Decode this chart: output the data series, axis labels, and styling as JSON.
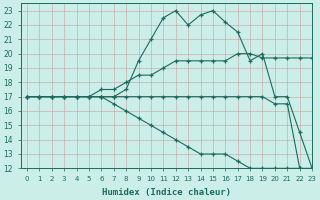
{
  "xlabel": "Humidex (Indice chaleur)",
  "xlim": [
    -0.5,
    23
  ],
  "ylim": [
    12,
    23.5
  ],
  "xticks": [
    0,
    1,
    2,
    3,
    4,
    5,
    6,
    7,
    8,
    9,
    10,
    11,
    12,
    13,
    14,
    15,
    16,
    17,
    18,
    19,
    20,
    21,
    22,
    23
  ],
  "yticks": [
    12,
    13,
    14,
    15,
    16,
    17,
    18,
    19,
    20,
    21,
    22,
    23
  ],
  "bg_color": "#cceee8",
  "line_color": "#1a6b60",
  "grid_color": "#aad4cc",
  "line1_x": [
    0,
    1,
    2,
    3,
    4,
    5,
    6,
    7,
    8,
    9,
    10,
    11,
    12,
    13,
    14,
    15,
    16,
    17,
    18,
    19,
    20,
    21,
    22,
    23
  ],
  "line1_y": [
    17,
    17,
    17,
    17,
    17,
    17,
    17,
    17,
    17.5,
    19.5,
    21,
    22.5,
    23,
    22,
    22.7,
    23,
    22.2,
    21.5,
    19.5,
    20,
    17,
    17,
    14.5,
    12
  ],
  "line2_x": [
    0,
    1,
    2,
    3,
    4,
    5,
    6,
    7,
    8,
    9,
    10,
    11,
    12,
    13,
    14,
    15,
    16,
    17,
    18,
    19,
    20,
    21,
    22,
    23
  ],
  "line2_y": [
    17,
    17,
    17,
    17,
    17,
    17,
    17.5,
    17.5,
    18,
    18.5,
    18.5,
    19,
    19.5,
    19.5,
    19.5,
    19.5,
    19.5,
    20,
    20,
    19.7,
    19.7,
    19.7,
    19.7,
    19.7
  ],
  "line3_x": [
    0,
    1,
    2,
    3,
    4,
    5,
    6,
    7,
    8,
    9,
    10,
    11,
    12,
    13,
    14,
    15,
    16,
    17,
    18,
    19,
    20,
    21,
    22,
    23
  ],
  "line3_y": [
    17,
    17,
    17,
    17,
    17,
    17,
    17,
    17,
    17,
    17,
    17,
    17,
    17,
    17,
    17,
    17,
    17,
    17,
    17,
    17,
    16.5,
    16.5,
    12,
    12
  ],
  "line4_x": [
    0,
    1,
    2,
    3,
    4,
    5,
    6,
    7,
    8,
    9,
    10,
    11,
    12,
    13,
    14,
    15,
    16,
    17,
    18,
    19,
    20,
    21,
    22,
    23
  ],
  "line4_y": [
    17,
    17,
    17,
    17,
    17,
    17,
    17,
    16.5,
    16,
    15.5,
    15,
    14.5,
    14,
    13.5,
    13,
    13,
    13,
    12.5,
    12,
    12,
    12,
    12,
    12,
    11.8
  ]
}
